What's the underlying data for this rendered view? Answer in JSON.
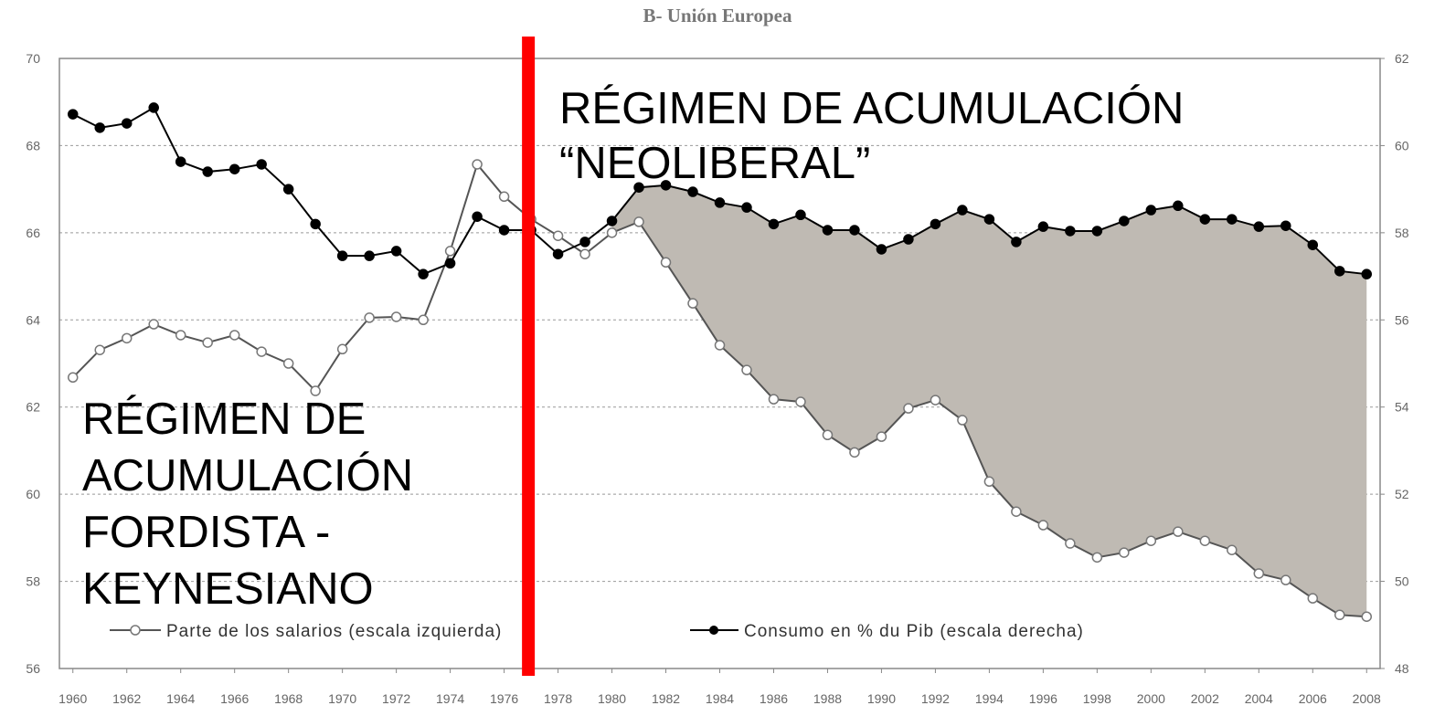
{
  "chart_data": {
    "type": "line",
    "title": "B- Unión Europea",
    "x": [
      1960,
      1961,
      1962,
      1963,
      1964,
      1965,
      1966,
      1967,
      1968,
      1969,
      1970,
      1971,
      1972,
      1973,
      1974,
      1975,
      1976,
      1977,
      1978,
      1979,
      1980,
      1981,
      1982,
      1983,
      1984,
      1985,
      1986,
      1987,
      1988,
      1989,
      1990,
      1991,
      1992,
      1993,
      1994,
      1995,
      1996,
      1997,
      1998,
      1999,
      2000,
      2001,
      2002,
      2003,
      2004,
      2005,
      2006,
      2007,
      2008
    ],
    "series": [
      {
        "name": "Parte de los salarios (escala izquierda)",
        "color": "#555555",
        "marker": "open",
        "values": [
          62.68,
          63.31,
          63.58,
          63.9,
          63.65,
          63.48,
          63.65,
          63.27,
          63.0,
          62.37,
          63.33,
          64.05,
          64.07,
          64.0,
          65.58,
          67.57,
          66.83,
          66.31,
          65.93,
          65.51,
          66.0,
          66.25,
          65.32,
          64.38,
          63.42,
          62.85,
          62.18,
          62.12,
          61.36,
          60.96,
          61.32,
          61.97,
          62.16,
          61.7,
          60.29,
          59.6,
          59.29,
          58.87,
          58.55,
          58.66,
          58.93,
          59.14,
          58.93,
          58.72,
          58.18,
          58.03,
          57.61,
          57.23,
          57.19
        ]
      },
      {
        "name": "Consumo en % du Pib (escala derecha)",
        "color": "#000000",
        "marker": "filled",
        "axis": "y2",
        "values": [
          60.72,
          60.41,
          60.51,
          60.87,
          59.63,
          59.4,
          59.46,
          59.57,
          59.0,
          58.2,
          57.47,
          57.47,
          57.58,
          57.05,
          57.3,
          58.37,
          58.06,
          58.06,
          57.51,
          57.79,
          58.27,
          59.04,
          59.09,
          58.94,
          58.69,
          58.58,
          58.2,
          58.41,
          58.06,
          58.06,
          57.62,
          57.85,
          58.2,
          58.52,
          58.31,
          57.79,
          58.14,
          58.04,
          58.04,
          58.27,
          58.52,
          58.62,
          58.31,
          58.31,
          58.14,
          58.16,
          57.72,
          57.12,
          57.05
        ]
      }
    ],
    "xlim": [
      1959.5,
      2008.5
    ],
    "xticks": [
      1960,
      1962,
      1964,
      1966,
      1968,
      1970,
      1972,
      1974,
      1976,
      1978,
      1980,
      1982,
      1984,
      1986,
      1988,
      1990,
      1992,
      1994,
      1996,
      1998,
      2000,
      2002,
      2004,
      2006,
      2008
    ],
    "ylim": [
      56,
      70
    ],
    "yticks": [
      56,
      58,
      60,
      62,
      64,
      66,
      68,
      70
    ],
    "y2lim": [
      48,
      62
    ],
    "y2ticks": [
      48,
      50,
      52,
      54,
      56,
      58,
      60,
      62
    ],
    "grid": true,
    "shade": {
      "from": 1980,
      "color": "#bfbab3"
    },
    "vline": {
      "x": 1976.9,
      "color": "#ff0000"
    },
    "annotations": [
      {
        "lines": [
          "RÉGIMEN DE ACUMULACIÓN",
          "“NEOLIBERAL”"
        ]
      },
      {
        "lines": [
          "RÉGIMEN DE",
          "ACUMULACIÓN",
          "FORDISTA -",
          "KEYNESIANO"
        ]
      }
    ]
  }
}
